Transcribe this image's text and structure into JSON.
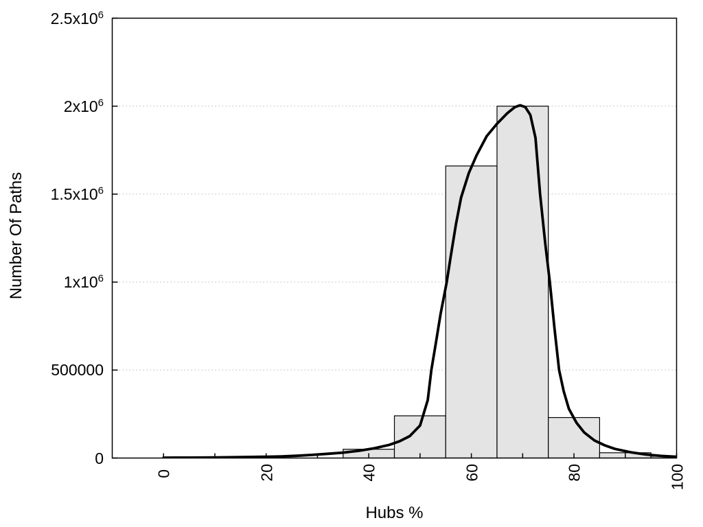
{
  "figure": {
    "background": "#ffffff",
    "text_color": "#000000"
  },
  "colors": {
    "axis": "#000000",
    "grid": "#b8b8b8",
    "bar_fill": "#e4e4e4",
    "bar_stroke": "#000000",
    "curve": "#000000"
  },
  "chart_data": {
    "type": "bar",
    "subtype": "histogram-with-density-curve",
    "title": "",
    "xlabel": "Hubs %",
    "ylabel": "Number Of Paths",
    "xlim": [
      -10,
      100
    ],
    "ylim": [
      0,
      2500000
    ],
    "grid": "horizontal-dotted",
    "legend": "none",
    "x_major_ticks": [
      0,
      20,
      40,
      60,
      80,
      100
    ],
    "x_minor_step": 10,
    "x_tick_label_rotation": -90,
    "y_ticks": [
      {
        "value": 0,
        "label": "0",
        "exp": ""
      },
      {
        "value": 500000,
        "label": "500000",
        "exp": ""
      },
      {
        "value": 1000000,
        "label": "1x10",
        "exp": "6"
      },
      {
        "value": 1500000,
        "label": "1.5x10",
        "exp": "6"
      },
      {
        "value": 2000000,
        "label": "2x10",
        "exp": "6"
      },
      {
        "value": 2500000,
        "label": "2.5x10",
        "exp": "6"
      }
    ],
    "bars": {
      "bin_width": 10,
      "bins": [
        {
          "x0": 35,
          "x1": 45,
          "count": 50000
        },
        {
          "x0": 45,
          "x1": 55,
          "count": 240000
        },
        {
          "x0": 55,
          "x1": 65,
          "count": 1660000
        },
        {
          "x0": 65,
          "x1": 75,
          "count": 2000000
        },
        {
          "x0": 75,
          "x1": 85,
          "count": 230000
        },
        {
          "x0": 85,
          "x1": 95,
          "count": 30000
        },
        {
          "x0": 95,
          "x1": 105,
          "count": 10000
        }
      ]
    },
    "curve": {
      "points": [
        [
          0,
          2000
        ],
        [
          5,
          2500
        ],
        [
          10,
          3500
        ],
        [
          15,
          5000
        ],
        [
          20,
          7500
        ],
        [
          23,
          9500
        ],
        [
          26,
          13000
        ],
        [
          29,
          18000
        ],
        [
          32,
          24000
        ],
        [
          35,
          31000
        ],
        [
          38,
          41000
        ],
        [
          41,
          55000
        ],
        [
          44,
          75000
        ],
        [
          46,
          95000
        ],
        [
          48,
          125000
        ],
        [
          50,
          185000
        ],
        [
          51.5,
          330000
        ],
        [
          52.2,
          500000
        ],
        [
          53,
          640000
        ],
        [
          54,
          820000
        ],
        [
          55.2,
          1000000
        ],
        [
          56,
          1150000
        ],
        [
          57,
          1330000
        ],
        [
          58,
          1480000
        ],
        [
          59.5,
          1620000
        ],
        [
          61,
          1720000
        ],
        [
          63,
          1830000
        ],
        [
          65,
          1900000
        ],
        [
          67,
          1960000
        ],
        [
          68.5,
          1995000
        ],
        [
          69.5,
          2005000
        ],
        [
          70.5,
          1995000
        ],
        [
          71.5,
          1950000
        ],
        [
          72.5,
          1820000
        ],
        [
          73.4,
          1500000
        ],
        [
          74.4,
          1220000
        ],
        [
          75.3,
          1000000
        ],
        [
          76.2,
          740000
        ],
        [
          77.1,
          500000
        ],
        [
          78,
          380000
        ],
        [
          79,
          280000
        ],
        [
          80.5,
          200000
        ],
        [
          82,
          145000
        ],
        [
          84,
          100000
        ],
        [
          86,
          72000
        ],
        [
          88,
          52000
        ],
        [
          91,
          33000
        ],
        [
          94,
          20000
        ],
        [
          97,
          12000
        ],
        [
          100,
          7000
        ]
      ]
    }
  }
}
